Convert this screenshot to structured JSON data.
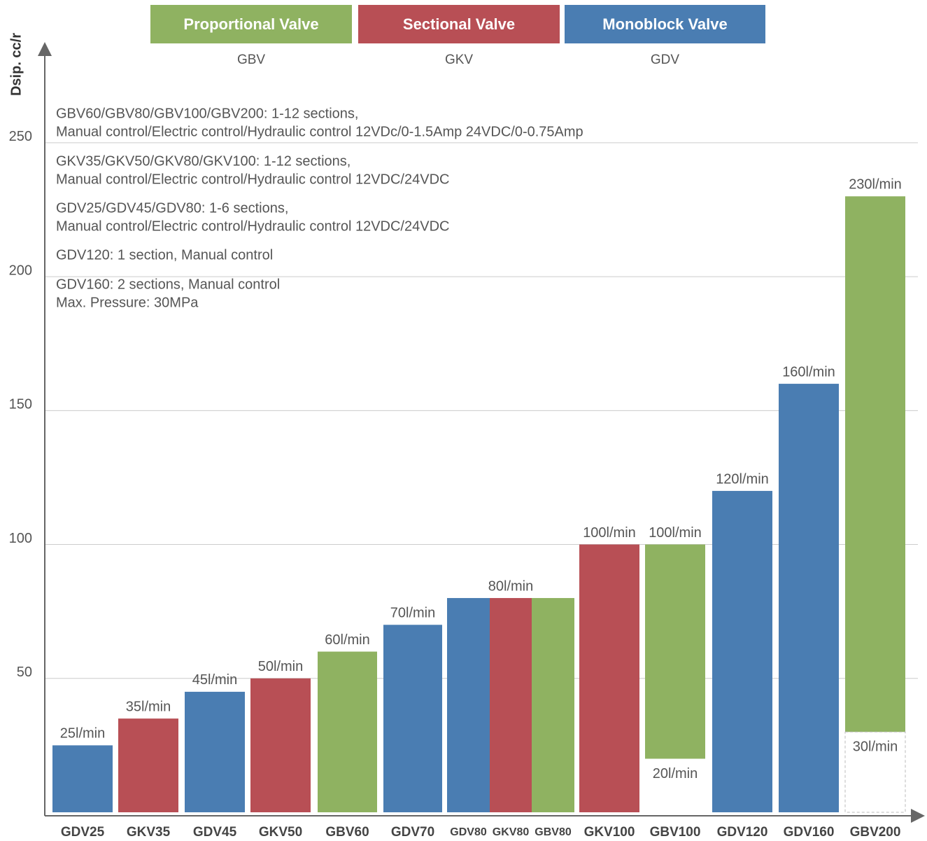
{
  "chart_data": {
    "type": "bar",
    "y_label": "Dsip. cc/r",
    "legend": [
      {
        "name": "Proportional Valve",
        "code": "GBV",
        "color": "#8fb261"
      },
      {
        "name": "Sectional Valve",
        "code": "GKV",
        "color": "#b84f55"
      },
      {
        "name": "Monoblock Valve",
        "code": "GDV",
        "color": "#4a7db2"
      }
    ],
    "notes": [
      "GBV60/GBV80/GBV100/GBV200: 1-12 sections,",
      "Manual control/Electric control/Hydraulic control 12VDc/0-1.5Amp 24VDC/0-0.75Amp",
      "GKV35/GKV50/GKV80/GKV100: 1-12 sections,",
      "Manual control/Electric control/Hydraulic control 12VDC/24VDC",
      "GDV25/GDV45/GDV80: 1-6 sections,",
      "Manual control/Electric control/Hydraulic control 12VDC/24VDC",
      "GDV120: 1 section, Manual control",
      "GDV160: 2 sections, Manual control",
      "Max. Pressure: 30MPa"
    ],
    "categories": [
      "GDV25",
      "GKV35",
      "GDV45",
      "GKV50",
      "GBV60",
      "GDV70",
      "GDV80",
      "GKV80",
      "GBV80",
      "GKV100",
      "GBV100",
      "GDV120",
      "GDV160",
      "GBV200"
    ],
    "colors": [
      "#4a7db2",
      "#b84f55",
      "#4a7db2",
      "#b84f55",
      "#8fb261",
      "#4a7db2",
      "#4a7db2",
      "#b84f55",
      "#8fb261",
      "#b84f55",
      "#8fb261",
      "#4a7db2",
      "#4a7db2",
      "#8fb261"
    ],
    "values": [
      25,
      35,
      45,
      50,
      60,
      70,
      80,
      80,
      80,
      100,
      100,
      120,
      160,
      230
    ],
    "value_labels": [
      "25l/min",
      "35l/min",
      "45l/min",
      "50l/min",
      "60l/min",
      "70l/min",
      null,
      "80l/min",
      null,
      "100l/min",
      "100l/min",
      "120l/min",
      "160l/min",
      "230l/min"
    ],
    "low_values": [
      null,
      null,
      null,
      null,
      null,
      null,
      null,
      null,
      null,
      null,
      20,
      null,
      null,
      30
    ],
    "low_value_labels": [
      null,
      null,
      null,
      null,
      null,
      null,
      null,
      null,
      null,
      null,
      "20l/min",
      null,
      null,
      "30l/min"
    ],
    "ylim": [
      0,
      285
    ],
    "yticks": [
      50,
      100,
      150,
      200,
      250
    ],
    "grid": true
  }
}
